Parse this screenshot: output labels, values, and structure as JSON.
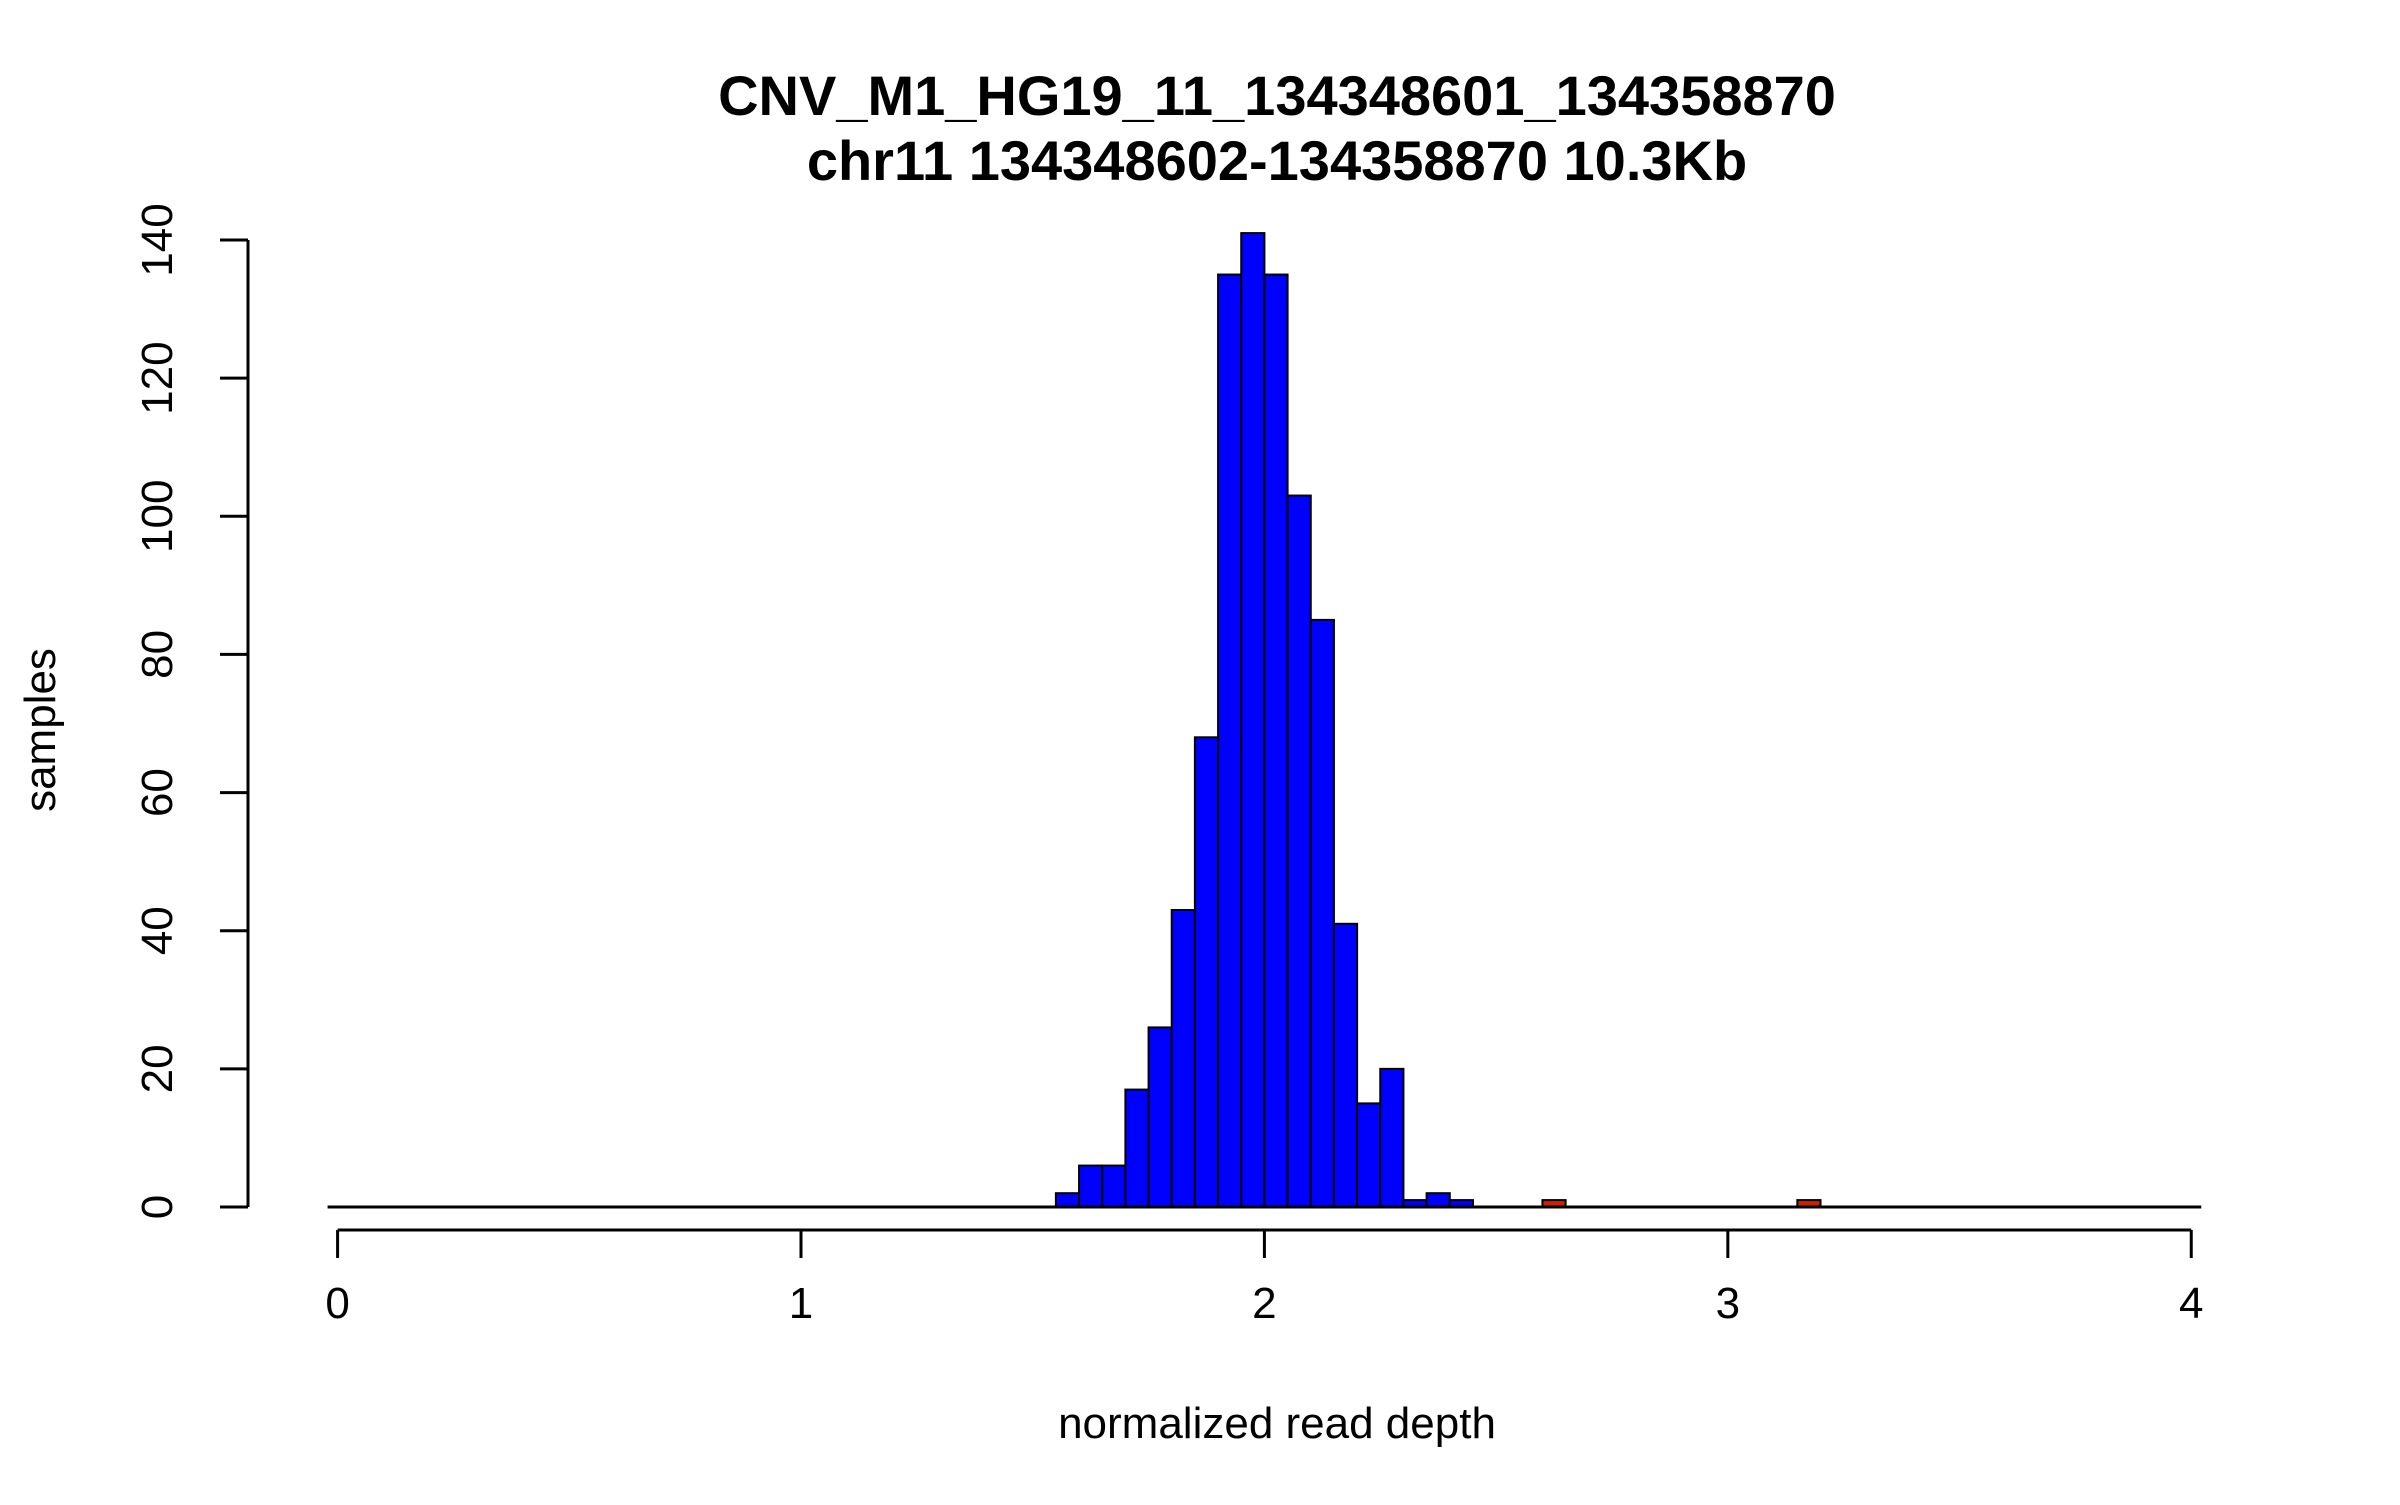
{
  "chart_data": {
    "type": "bar",
    "title": "CNV_M1_HG19_11_134348601_134358870",
    "subtitle": "chr11 134348602-134358870 10.3Kb",
    "xlabel": "normalized read depth",
    "ylabel": "samples",
    "xlim": [
      -0.025,
      4.075
    ],
    "ylim": [
      0,
      140
    ],
    "x_ticks": [
      0,
      1,
      2,
      3,
      4
    ],
    "x_tick_labels": [
      "0",
      "1",
      "2",
      "3",
      "4"
    ],
    "y_ticks": [
      0,
      20,
      40,
      60,
      80,
      100,
      120,
      140
    ],
    "y_tick_labels": [
      "0",
      "20",
      "40",
      "60",
      "80",
      "100",
      "120",
      "140"
    ],
    "bin_width": 0.05,
    "baseline_range": [
      0,
      4
    ],
    "bins": [
      {
        "start": 1.55,
        "end": 1.6,
        "value": 2,
        "group": "normal"
      },
      {
        "start": 1.6,
        "end": 1.65,
        "value": 6,
        "group": "normal"
      },
      {
        "start": 1.65,
        "end": 1.7,
        "value": 6,
        "group": "normal"
      },
      {
        "start": 1.7,
        "end": 1.75,
        "value": 17,
        "group": "normal"
      },
      {
        "start": 1.75,
        "end": 1.8,
        "value": 26,
        "group": "normal"
      },
      {
        "start": 1.8,
        "end": 1.85,
        "value": 43,
        "group": "normal"
      },
      {
        "start": 1.85,
        "end": 1.9,
        "value": 68,
        "group": "normal"
      },
      {
        "start": 1.9,
        "end": 1.95,
        "value": 135,
        "group": "normal"
      },
      {
        "start": 1.95,
        "end": 2.0,
        "value": 141,
        "group": "normal"
      },
      {
        "start": 2.0,
        "end": 2.05,
        "value": 135,
        "group": "normal"
      },
      {
        "start": 2.05,
        "end": 2.1,
        "value": 103,
        "group": "normal"
      },
      {
        "start": 2.1,
        "end": 2.15,
        "value": 85,
        "group": "normal"
      },
      {
        "start": 2.15,
        "end": 2.2,
        "value": 41,
        "group": "normal"
      },
      {
        "start": 2.2,
        "end": 2.25,
        "value": 15,
        "group": "normal"
      },
      {
        "start": 2.25,
        "end": 2.3,
        "value": 20,
        "group": "normal"
      },
      {
        "start": 2.3,
        "end": 2.35,
        "value": 1,
        "group": "normal"
      },
      {
        "start": 2.35,
        "end": 2.4,
        "value": 2,
        "group": "normal"
      },
      {
        "start": 2.4,
        "end": 2.45,
        "value": 1,
        "group": "normal"
      },
      {
        "start": 2.6,
        "end": 2.65,
        "value": 1,
        "group": "outlier"
      },
      {
        "start": 3.15,
        "end": 3.2,
        "value": 1,
        "group": "outlier"
      }
    ],
    "colors": {
      "normal": "#0000FF",
      "outlier": "#CC2200",
      "stroke": "#000000",
      "axis": "#000000"
    }
  }
}
